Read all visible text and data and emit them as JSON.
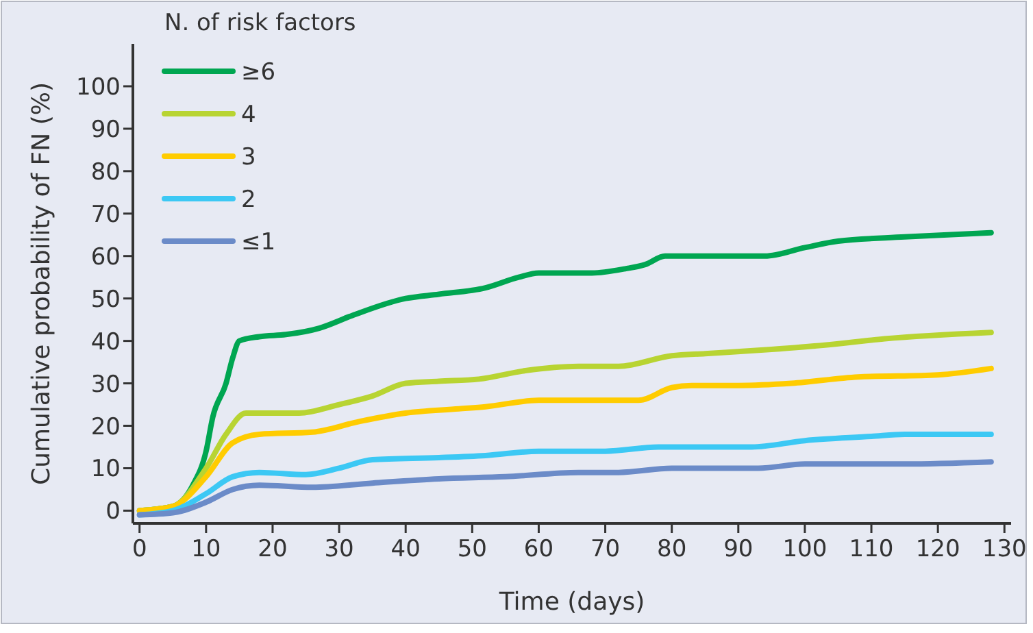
{
  "chart_data": {
    "type": "line",
    "xlabel": "Time (days)",
    "ylabel": "Cumulative probability of FN (%)",
    "legend_title": "N. of risk factors",
    "legend": "top left",
    "grid": false,
    "xlim": [
      -1,
      131
    ],
    "ylim": [
      -3,
      110
    ],
    "xticks": [
      0,
      10,
      20,
      30,
      40,
      50,
      60,
      70,
      80,
      90,
      100,
      110,
      120,
      130
    ],
    "yticks": [
      0,
      10,
      20,
      30,
      40,
      50,
      60,
      70,
      80,
      90,
      100
    ],
    "series": [
      {
        "name": "≥6",
        "color": "#00a651",
        "x": [
          0,
          5,
          8,
          10,
          11,
          13,
          14,
          15,
          18,
          22,
          27,
          32,
          40,
          45,
          52,
          57,
          60,
          68,
          73,
          76,
          79,
          85,
          94,
          100,
          105,
          115,
          128
        ],
        "values": [
          0,
          1,
          6,
          14,
          22,
          30,
          36,
          40,
          41,
          41.5,
          43,
          46,
          50,
          51,
          52.5,
          55,
          56,
          56,
          57,
          58,
          60,
          60,
          60,
          62,
          63.5,
          64.5,
          65.5
        ]
      },
      {
        "name": "4",
        "color": "#b8d432",
        "x": [
          0,
          5,
          10,
          13,
          16,
          20,
          24,
          30,
          35,
          40,
          45,
          51,
          58,
          66,
          72,
          80,
          85,
          95,
          103,
          112,
          128
        ],
        "values": [
          0,
          1,
          10,
          18,
          23,
          23,
          23,
          25,
          27,
          30,
          30.5,
          31,
          33,
          34,
          34,
          36.5,
          37,
          38,
          39,
          40.5,
          42
        ]
      },
      {
        "name": "3",
        "color": "#ffcc00",
        "x": [
          0,
          5,
          10,
          14,
          18,
          26,
          33,
          40,
          48,
          52,
          60,
          70,
          75,
          80,
          83,
          90,
          98,
          108,
          120,
          128
        ],
        "values": [
          0,
          1,
          8,
          16,
          18,
          18.5,
          21,
          23,
          24,
          24.5,
          26,
          26,
          26,
          29,
          29.5,
          29.5,
          30,
          31.5,
          32,
          33.5
        ]
      },
      {
        "name": "2",
        "color": "#3cc8f4",
        "x": [
          0,
          5,
          10,
          14,
          18,
          25,
          30,
          35,
          45,
          52,
          60,
          65,
          70,
          78,
          85,
          92,
          100,
          110,
          115,
          128
        ],
        "values": [
          -1,
          0,
          4,
          8,
          9,
          8.5,
          10,
          12,
          12.5,
          13,
          14,
          14,
          14,
          15,
          15,
          15,
          16.5,
          17.5,
          18,
          18
        ]
      },
      {
        "name": "≤1",
        "color": "#6b8bc8",
        "x": [
          0,
          5,
          10,
          14,
          18,
          26,
          35,
          45,
          55,
          66,
          72,
          80,
          93,
          100,
          103,
          115,
          128
        ],
        "values": [
          -1,
          -0.5,
          2,
          5,
          6,
          5.5,
          6.5,
          7.5,
          8,
          9,
          9,
          10,
          10,
          11,
          11,
          11,
          11.5
        ]
      }
    ]
  }
}
